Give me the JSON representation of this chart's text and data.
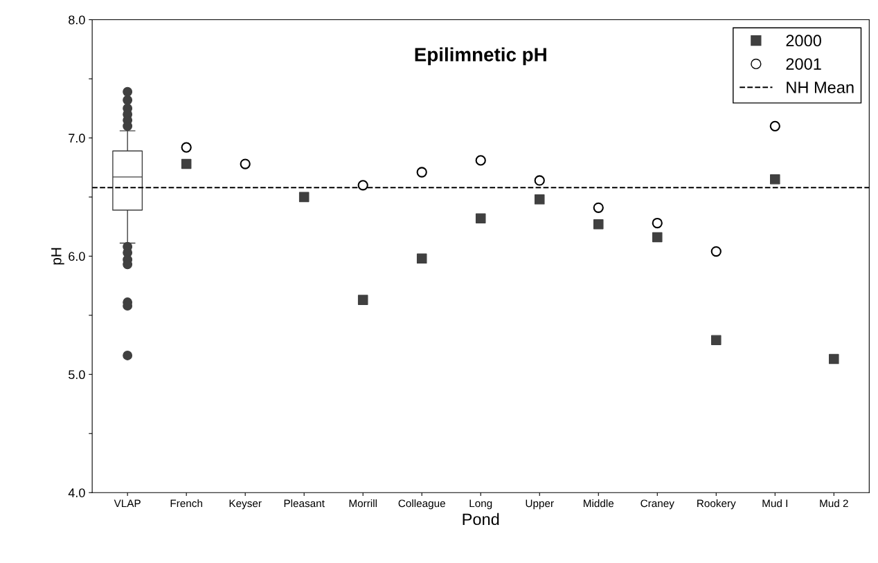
{
  "chart_data": {
    "type": "scatter",
    "title": "Epilimnetic pH",
    "xlabel": "Pond",
    "ylabel": "pH",
    "categories": [
      "VLAP",
      "French",
      "Keyser",
      "Pleasant",
      "Morrill",
      "Colleague",
      "Long",
      "Upper",
      "Middle",
      "Craney",
      "Rookery",
      "Mud I",
      "Mud 2"
    ],
    "series": [
      {
        "type": "box",
        "color": "#404040",
        "boxes": [
          {
            "low": 6.11,
            "q1": 6.39,
            "median": 6.67,
            "q3": 6.89,
            "high": 7.06,
            "outliers": [
              7.39,
              7.32,
              7.25,
              7.2,
              7.15,
              7.1,
              6.08,
              6.03,
              5.97,
              5.93,
              5.61,
              5.58,
              5.16
            ]
          },
          null,
          null,
          null,
          null,
          null,
          null,
          null,
          null,
          null,
          null,
          null,
          null
        ]
      },
      {
        "name": "2000",
        "color": "#404040",
        "marker": "square",
        "values": [
          null,
          6.78,
          null,
          6.5,
          5.63,
          5.98,
          6.32,
          6.48,
          6.27,
          6.16,
          5.29,
          6.65,
          5.13
        ]
      },
      {
        "name": "2001",
        "color": "#000000",
        "marker": "circle",
        "values": [
          null,
          6.92,
          6.78,
          null,
          6.6,
          6.71,
          6.81,
          6.64,
          6.41,
          6.28,
          6.04,
          7.1,
          null
        ]
      }
    ],
    "ref_lines": [
      {
        "axis": "y",
        "value": 6.58,
        "label": "NH Mean",
        "color": "#000000",
        "line_style": "dashed"
      }
    ],
    "ylim": [
      4.0,
      8.0
    ],
    "yticks": [
      {
        "value": 4,
        "label": "4.0"
      },
      {
        "value": 4.5,
        "label": null
      },
      {
        "value": 5,
        "label": "5.0"
      },
      {
        "value": 5.5,
        "label": null
      },
      {
        "value": 6,
        "label": "6.0"
      },
      {
        "value": 6.5,
        "label": null
      },
      {
        "value": 7,
        "label": "7.0"
      },
      {
        "value": 7.5,
        "label": null
      },
      {
        "value": 8,
        "label": "8.0"
      }
    ],
    "grid": false,
    "legend": "top right"
  }
}
